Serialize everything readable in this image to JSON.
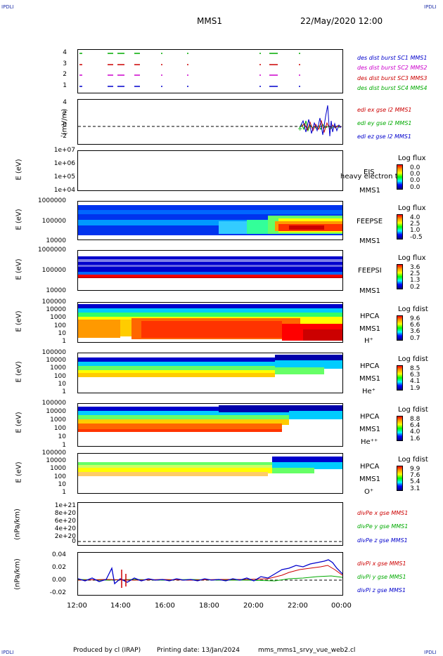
{
  "header": {
    "corner_label": "IPDLI",
    "spacecraft": "MMS1",
    "datetime": "22/May/2020 12:00"
  },
  "footer": {
    "produced_by": "Produced by cl (IRAP)",
    "printing_date": "Printing date: 13/Jan/2024",
    "script": "mms_mms1_srvy_vue_web2.cl"
  },
  "chart_data": [
    {
      "type": "line",
      "panel": "burst-coverage",
      "ylim": [
        0.5,
        4.5
      ],
      "yticks": [
        "4",
        "3",
        "2",
        "1"
      ],
      "legend": [
        {
          "text": "des dist burst SC1 MMS1",
          "color": "#0000cc"
        },
        {
          "text": "des dist burst SC2 MMS2",
          "color": "#cc00cc"
        },
        {
          "text": "des dist burst SC3 MMS3",
          "color": "#cc0000"
        },
        {
          "text": "des dist burst SC4 MMS4",
          "color": "#00aa00"
        }
      ]
    },
    {
      "type": "line",
      "panel": "edi-e-field",
      "ylabel": "(mV/m)",
      "ylim": [
        -3,
        5
      ],
      "yticks": [
        "4",
        "2",
        "0",
        "-2"
      ],
      "legend": [
        {
          "text": "edi ex gse l2 MMS1",
          "color": "#cc0000"
        },
        {
          "text": "edi ey gse l2 MMS1",
          "color": "#00aa00"
        },
        {
          "text": "edi ez gse l2 MMS1",
          "color": "#0000cc"
        }
      ]
    },
    {
      "type": "heatmap",
      "panel": "eis",
      "ylabel": "E (eV)",
      "yticks": [
        "1e+07",
        "1e+06",
        "1e+05",
        "1e+04"
      ],
      "right_labels": [
        "EIS",
        "MMS1"
      ],
      "overlay_text": "heavy electron to",
      "colorbar": {
        "title": "Log flux",
        "values": [
          "0.0",
          "0.0",
          "0.0",
          "0.0"
        ]
      }
    },
    {
      "type": "heatmap",
      "panel": "feepse",
      "ylabel": "E (eV)",
      "yticks": [
        "1000000",
        "100000",
        "10000"
      ],
      "right_labels": [
        "FEEPSE",
        "MMS1"
      ],
      "colorbar": {
        "title": "Log flux",
        "values": [
          "4.0",
          "2.5",
          "1.0",
          "-0.5"
        ]
      }
    },
    {
      "type": "heatmap",
      "panel": "feepsi",
      "ylabel": "E (eV)",
      "yticks": [
        "1000000",
        "100000",
        "10000"
      ],
      "right_labels": [
        "FEEPSI",
        "MMS1"
      ],
      "colorbar": {
        "title": "Log flux",
        "values": [
          "3.6",
          "2.5",
          "1.3",
          "0.2"
        ]
      }
    },
    {
      "type": "heatmap",
      "panel": "hpca-h",
      "ylabel": "E (eV)",
      "yticks": [
        "100000",
        "10000",
        "1000",
        "100",
        "10",
        "1"
      ],
      "right_labels": [
        "HPCA",
        "MMS1",
        "H⁺"
      ],
      "colorbar": {
        "title": "Log fdist",
        "values": [
          "9.6",
          "6.6",
          "3.6",
          "0.7"
        ]
      }
    },
    {
      "type": "heatmap",
      "panel": "hpca-he",
      "ylabel": "E (eV)",
      "yticks": [
        "100000",
        "10000",
        "1000",
        "100",
        "10",
        "1"
      ],
      "right_labels": [
        "HPCA",
        "MMS1",
        "He⁺"
      ],
      "colorbar": {
        "title": "Log fdist",
        "values": [
          "8.5",
          "6.3",
          "4.1",
          "1.9"
        ]
      }
    },
    {
      "type": "heatmap",
      "panel": "hpca-hepp",
      "ylabel": "E (eV)",
      "yticks": [
        "100000",
        "10000",
        "1000",
        "100",
        "10",
        "1"
      ],
      "right_labels": [
        "HPCA",
        "MMS1",
        "He⁺⁺"
      ],
      "colorbar": {
        "title": "Log fdist",
        "values": [
          "8.8",
          "6.4",
          "4.0",
          "1.6"
        ]
      }
    },
    {
      "type": "heatmap",
      "panel": "hpca-o",
      "ylabel": "E (eV)",
      "yticks": [
        "100000",
        "10000",
        "1000",
        "100",
        "10",
        "1"
      ],
      "right_labels": [
        "HPCA",
        "MMS1",
        "O⁺"
      ],
      "colorbar": {
        "title": "Log fdist",
        "values": [
          "9.9",
          "7.6",
          "5.4",
          "3.1"
        ]
      }
    },
    {
      "type": "line",
      "panel": "divpe",
      "ylabel": "(nPa/km)",
      "yticks": [
        "1e+21",
        "8e+20",
        "6e+20",
        "4e+20",
        "2e+20",
        "0"
      ],
      "legend": [
        {
          "text": "divPe x gse MMS1",
          "color": "#cc0000"
        },
        {
          "text": "divPe y gse MMS1",
          "color": "#00aa00"
        },
        {
          "text": "divPe z gse MMS1",
          "color": "#0000cc"
        }
      ]
    },
    {
      "type": "line",
      "panel": "divpi",
      "ylabel": "(nPa/km)",
      "ylim": [
        -0.025,
        0.045
      ],
      "yticks": [
        "0.04",
        "0.02",
        "0.00",
        "-0.02"
      ],
      "legend": [
        {
          "text": "divPi x gse MMS1",
          "color": "#cc0000"
        },
        {
          "text": "divPi y gse MMS1",
          "color": "#00aa00"
        },
        {
          "text": "divPi z gse MMS1",
          "color": "#0000cc"
        }
      ],
      "x": [
        "12:00",
        "14:00",
        "16:00",
        "18:00",
        "20:00",
        "22:00",
        "00:00"
      ]
    }
  ],
  "xaxis": {
    "ticks": [
      "12:00",
      "14:00",
      "16:00",
      "18:00",
      "20:00",
      "22:00",
      "00:00"
    ]
  }
}
